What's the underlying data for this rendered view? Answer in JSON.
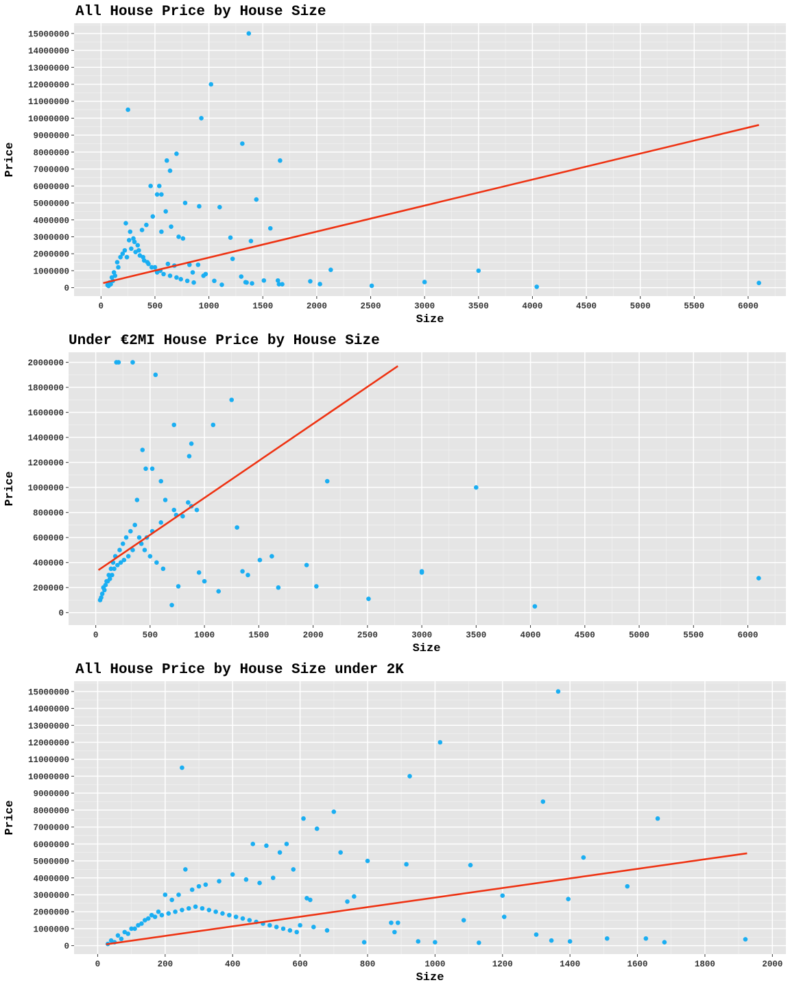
{
  "chart_data": [
    {
      "type": "scatter",
      "title": "All House Price by House Size",
      "xlabel": "Size",
      "ylabel": "Price",
      "xlim": [
        -250,
        6350
      ],
      "ylim": [
        -500000,
        15600000
      ],
      "xticks": [
        "0",
        "500",
        "1000",
        "1500",
        "2000",
        "2500",
        "3000",
        "3500",
        "4000",
        "4500",
        "5000",
        "5500",
        "6000"
      ],
      "yticks": [
        "0",
        "1000000",
        "2000000",
        "3000000",
        "4000000",
        "5000000",
        "6000000",
        "7000000",
        "8000000",
        "9000000",
        "10000000",
        "11000000",
        "12000000",
        "13000000",
        "14000000",
        "15000000"
      ],
      "grid": true,
      "point_color": "#1aaef2",
      "line_color": "#ee3212",
      "x": [
        1370,
        1020,
        930,
        250,
        1310,
        700,
        1660,
        610,
        640,
        460,
        520,
        540,
        560,
        1440,
        1100,
        910,
        780,
        1570,
        1200,
        1390,
        2130,
        3500,
        1220,
        1300,
        6100,
        3000,
        1940,
        4040,
        2510,
        2030,
        1680,
        1400,
        1510,
        1640,
        1120,
        1340,
        820,
        900,
        970,
        600,
        650,
        720,
        760,
        480,
        560,
        420,
        380,
        300,
        260,
        340,
        220,
        180,
        150,
        120,
        100,
        80,
        60,
        70,
        90,
        110,
        130,
        160,
        200,
        240,
        280,
        320,
        360,
        400,
        440,
        500,
        550,
        620,
        680,
        850,
        950,
        1050,
        1350,
        1650,
        230,
        270,
        310,
        350,
        390,
        430,
        470,
        520,
        580,
        640,
        700,
        740,
        800,
        860
      ],
      "y": [
        15000000,
        12000000,
        10000000,
        10500000,
        8500000,
        7900000,
        7500000,
        7500000,
        6900000,
        6000000,
        5500000,
        6000000,
        5500000,
        5200000,
        4750000,
        4800000,
        5000000,
        3500000,
        2950000,
        2750000,
        1050000,
        1000000,
        1700000,
        650000,
        275000,
        330000,
        375000,
        50000,
        110000,
        210000,
        200000,
        250000,
        420000,
        420000,
        170000,
        320000,
        1350000,
        1350000,
        800000,
        4500000,
        3600000,
        3000000,
        2900000,
        4200000,
        3300000,
        3700000,
        3400000,
        2900000,
        2800000,
        2500000,
        2200000,
        1800000,
        1500000,
        900000,
        600000,
        300000,
        150000,
        100000,
        200000,
        400000,
        700000,
        1200000,
        2000000,
        1800000,
        2300000,
        2100000,
        1900000,
        1600000,
        1400000,
        1200000,
        1000000,
        1400000,
        1300000,
        900000,
        700000,
        400000,
        300000,
        200000,
        3800000,
        3300000,
        2700000,
        2200000,
        1800000,
        1500000,
        1200000,
        900000,
        800000,
        700000,
        600000,
        500000,
        400000,
        300000
      ],
      "trend": {
        "x": [
          20,
          6100
        ],
        "y": [
          270000,
          9600000
        ]
      }
    },
    {
      "type": "scatter",
      "title": "Under €2MI House Price by House Size",
      "xlabel": "Size",
      "ylabel": "Price",
      "xlim": [
        -250,
        6350
      ],
      "ylim": [
        -100000,
        2080000
      ],
      "xticks": [
        "0",
        "500",
        "1000",
        "1500",
        "2000",
        "2500",
        "3000",
        "3500",
        "4000",
        "4500",
        "5000",
        "5500",
        "6000"
      ],
      "yticks": [
        "0",
        "200000",
        "400000",
        "600000",
        "800000",
        "1000000",
        "1200000",
        "1400000",
        "1600000",
        "1800000",
        "2000000"
      ],
      "grid": true,
      "point_color": "#1aaef2",
      "line_color": "#ee3212",
      "x": [
        190,
        210,
        340,
        550,
        1250,
        1080,
        720,
        880,
        860,
        520,
        460,
        430,
        600,
        640,
        720,
        800,
        850,
        930,
        880,
        740,
        2130,
        3500,
        1300,
        1510,
        1620,
        1940,
        2030,
        1680,
        1350,
        1400,
        1130,
        1000,
        950,
        2510,
        3000,
        3000,
        4040,
        6100,
        760,
        700,
        600,
        520,
        470,
        420,
        380,
        340,
        300,
        260,
        230,
        200,
        170,
        150,
        130,
        110,
        90,
        70,
        60,
        50,
        40,
        80,
        100,
        120,
        140,
        160,
        180,
        220,
        250,
        280,
        320,
        360,
        400,
        450,
        500,
        560,
        620
      ],
      "y": [
        2000000,
        2000000,
        2000000,
        1900000,
        1700000,
        1500000,
        1500000,
        1350000,
        1250000,
        1150000,
        1150000,
        1300000,
        1050000,
        900000,
        820000,
        770000,
        880000,
        820000,
        850000,
        780000,
        1050000,
        1000000,
        680000,
        420000,
        450000,
        380000,
        210000,
        200000,
        330000,
        300000,
        170000,
        250000,
        320000,
        110000,
        330000,
        320000,
        50000,
        275000,
        210000,
        60000,
        720000,
        650000,
        600000,
        550000,
        900000,
        500000,
        450000,
        420000,
        400000,
        380000,
        350000,
        300000,
        270000,
        250000,
        220000,
        200000,
        150000,
        120000,
        100000,
        180000,
        250000,
        300000,
        350000,
        400000,
        450000,
        500000,
        550000,
        600000,
        650000,
        700000,
        600000,
        500000,
        450000,
        400000,
        350000
      ],
      "trend": {
        "x": [
          25,
          2780
        ],
        "y": [
          340000,
          1970000
        ]
      }
    },
    {
      "type": "scatter",
      "title": "All House Price by House Size under 2K",
      "xlabel": "Size",
      "ylabel": "Price",
      "xlim": [
        -70,
        2040
      ],
      "ylim": [
        -500000,
        15600000
      ],
      "xticks": [
        "0",
        "200",
        "400",
        "600",
        "800",
        "1000",
        "1200",
        "1400",
        "1600",
        "1800",
        "2000"
      ],
      "yticks": [
        "0",
        "1000000",
        "2000000",
        "3000000",
        "4000000",
        "5000000",
        "6000000",
        "7000000",
        "8000000",
        "9000000",
        "10000000",
        "11000000",
        "12000000",
        "13000000",
        "14000000",
        "15000000"
      ],
      "grid": true,
      "point_color": "#1aaef2",
      "line_color": "#ee3212",
      "x": [
        1365,
        1015,
        925,
        250,
        1320,
        700,
        1660,
        610,
        650,
        460,
        500,
        540,
        1440,
        1105,
        915,
        800,
        1570,
        1200,
        1395,
        1205,
        1085,
        1300,
        1345,
        1400,
        1510,
        1625,
        1680,
        1920,
        1130,
        950,
        1000,
        880,
        870,
        890,
        760,
        720,
        790,
        740,
        630,
        620,
        580,
        560,
        520,
        480,
        440,
        400,
        360,
        320,
        300,
        280,
        260,
        240,
        220,
        200,
        180,
        160,
        140,
        120,
        100,
        80,
        60,
        40,
        30,
        50,
        70,
        90,
        110,
        130,
        150,
        170,
        190,
        210,
        230,
        250,
        270,
        290,
        310,
        330,
        350,
        370,
        390,
        410,
        430,
        450,
        470,
        490,
        510,
        530,
        550,
        570,
        590,
        600,
        640,
        680
      ],
      "y": [
        15000000,
        12000000,
        10000000,
        10500000,
        8500000,
        7900000,
        7500000,
        7500000,
        6900000,
        6000000,
        5900000,
        5500000,
        5200000,
        4750000,
        4800000,
        5000000,
        3500000,
        2950000,
        2750000,
        1700000,
        1500000,
        650000,
        300000,
        250000,
        420000,
        420000,
        200000,
        375000,
        170000,
        250000,
        200000,
        800000,
        1350000,
        1350000,
        2900000,
        5500000,
        200000,
        2600000,
        2700000,
        2800000,
        4500000,
        6000000,
        4000000,
        3700000,
        3900000,
        4200000,
        3800000,
        3600000,
        3500000,
        3300000,
        4500000,
        3000000,
        2700000,
        3000000,
        2000000,
        1800000,
        1500000,
        1200000,
        1000000,
        800000,
        600000,
        300000,
        100000,
        200000,
        400000,
        700000,
        1000000,
        1300000,
        1600000,
        1700000,
        1800000,
        1900000,
        2000000,
        2100000,
        2200000,
        2300000,
        2200000,
        2100000,
        2000000,
        1900000,
        1800000,
        1700000,
        1600000,
        1500000,
        1400000,
        1300000,
        1200000,
        1100000,
        1000000,
        900000,
        800000,
        1200000,
        1100000,
        900000
      ],
      "trend": {
        "x": [
          25,
          1925
        ],
        "y": [
          80000,
          5450000
        ]
      }
    }
  ]
}
